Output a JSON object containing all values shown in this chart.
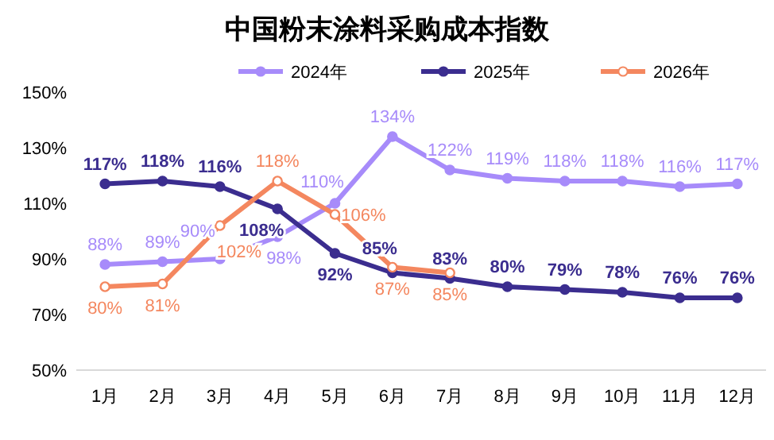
{
  "chart_data": {
    "type": "line",
    "title": "中国粉末涂料采购成本指数",
    "categories": [
      "1月",
      "2月",
      "3月",
      "4月",
      "5月",
      "6月",
      "7月",
      "8月",
      "9月",
      "10月",
      "11月",
      "12月"
    ],
    "series": [
      {
        "name": "2024年",
        "color": "#a78bfa",
        "values": [
          88,
          89,
          90,
          98,
          110,
          134,
          122,
          119,
          118,
          118,
          116,
          117
        ],
        "value_labels": [
          "88%",
          "89%",
          "90%",
          "98%",
          "110%",
          "134%",
          "122%",
          "119%",
          "118%",
          "118%",
          "116%",
          "117%"
        ]
      },
      {
        "name": "2025年",
        "color": "#3b2d8f",
        "values": [
          117,
          118,
          116,
          108,
          92,
          85,
          83,
          80,
          79,
          78,
          76,
          76
        ],
        "value_labels": [
          "117%",
          "118%",
          "116%",
          "108%",
          "92%",
          "85%",
          "83%",
          "80%",
          "79%",
          "78%",
          "76%",
          "76%"
        ]
      },
      {
        "name": "2026年",
        "color": "#f4875f",
        "values": [
          80,
          81,
          102,
          118,
          106,
          87,
          85,
          null,
          null,
          null,
          null,
          null
        ],
        "value_labels": [
          "80%",
          "81%",
          "102%",
          "118%",
          "106%",
          "87%",
          "85%",
          null,
          null,
          null,
          null,
          null
        ]
      }
    ],
    "ylim": [
      50,
      150
    ],
    "yticks": [
      {
        "value": 50,
        "label": "50%"
      },
      {
        "value": 70,
        "label": "70%"
      },
      {
        "value": 90,
        "label": "90%"
      },
      {
        "value": 110,
        "label": "110%"
      },
      {
        "value": 130,
        "label": "130%"
      },
      {
        "value": 150,
        "label": "150%"
      }
    ],
    "grid": false,
    "legend": "top",
    "marker": "circle",
    "line_style": "solid"
  }
}
